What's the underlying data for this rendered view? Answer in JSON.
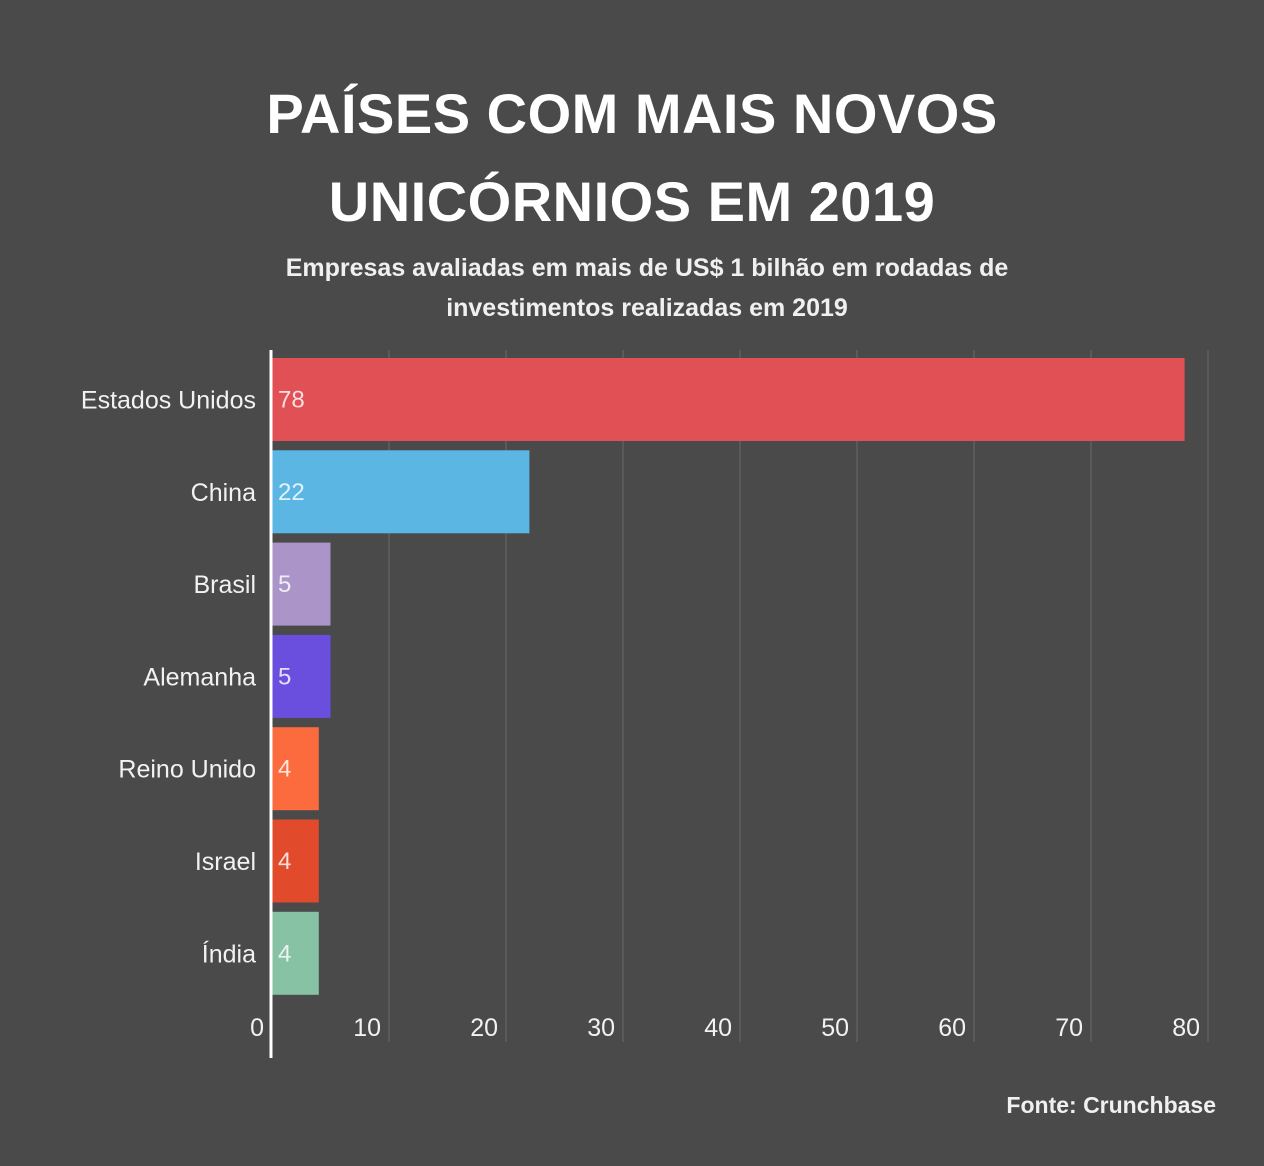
{
  "title": "PAÍSES COM MAIS NOVOS UNICÓRNIOS EM 2019",
  "subtitle": "Empresas avaliadas em mais de US$ 1 bilhão em rodadas de investimentos realizadas em 2019",
  "source": "Fonte: Crunchbase",
  "chart_data": {
    "type": "bar",
    "orientation": "horizontal",
    "categories": [
      "Estados Unidos",
      "China",
      "Brasil",
      "Alemanha",
      "Reino Unido",
      "Israel",
      "Índia"
    ],
    "values": [
      78,
      22,
      5,
      5,
      4,
      4,
      4
    ],
    "colors": [
      "#e05055",
      "#5bb6e4",
      "#ab94c7",
      "#6a4fde",
      "#fb6b3e",
      "#e24a2c",
      "#87c2a4"
    ],
    "xlim": [
      0,
      80
    ],
    "xticks": [
      0,
      10,
      20,
      30,
      40,
      50,
      60,
      70,
      80
    ],
    "grid": true,
    "data_labels": true
  }
}
